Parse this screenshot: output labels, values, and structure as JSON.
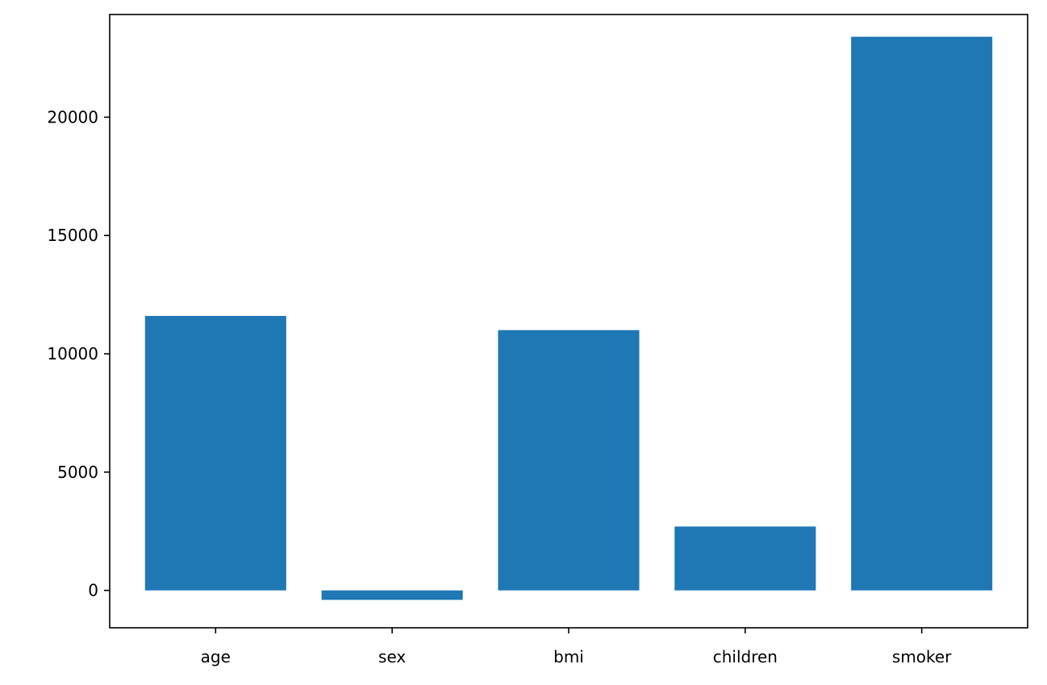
{
  "chart_data": {
    "type": "bar",
    "categories": [
      "age",
      "sex",
      "bmi",
      "children",
      "smoker"
    ],
    "values": [
      11600,
      -400,
      11000,
      2700,
      23400
    ],
    "ylim": [
      -1580,
      24340
    ],
    "yticks": [
      0,
      5000,
      10000,
      15000,
      20000
    ],
    "ytick_labels": [
      "0",
      "5000",
      "10000",
      "15000",
      "20000"
    ],
    "bar_color": "#1f77b4",
    "grid": false,
    "legend": "none"
  }
}
